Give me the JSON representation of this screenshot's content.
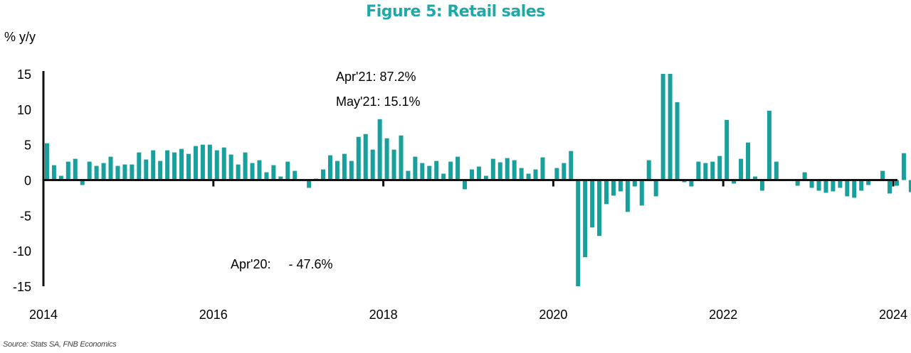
{
  "chart_data": {
    "type": "bar",
    "title": "Figure 5: Retail sales",
    "ylabel": "% y/y",
    "xlabel": "",
    "source": "Source: Stats SA, FNB Economics",
    "ylim": [
      -15,
      15
    ],
    "yticks": [
      15,
      10,
      5,
      0,
      -5,
      -10,
      -15
    ],
    "xticks": [
      "2014",
      "2016",
      "2018",
      "2020",
      "2022",
      "2024"
    ],
    "xrange": {
      "start": "2014-01",
      "end": "2024-03"
    },
    "grid": false,
    "legend": "none",
    "bar_color": "#17a09c",
    "annotations": [
      {
        "text": "Apr'21: 87.2%",
        "anchor": "top-center"
      },
      {
        "text": "May'21: 15.1%",
        "anchor": "top-center"
      },
      {
        "text": "Apr'20:     - 47.6%",
        "anchor": "bottom-left"
      }
    ],
    "series": [
      {
        "name": "Retail sales % y/y",
        "start": "2014-01",
        "frequency": "monthly",
        "values": [
          5.2,
          2.1,
          0.6,
          2.6,
          3.0,
          -0.7,
          2.6,
          2.0,
          2.4,
          3.3,
          2.0,
          2.2,
          2.2,
          3.9,
          2.9,
          4.2,
          2.7,
          4.2,
          3.9,
          4.4,
          3.7,
          4.8,
          5.0,
          5.0,
          4.2,
          4.6,
          3.6,
          2.2,
          3.9,
          2.4,
          2.8,
          1.1,
          2.1,
          0.5,
          2.6,
          1.3,
          0.1,
          -1.1,
          0.2,
          1.5,
          3.5,
          2.7,
          3.7,
          2.7,
          6.1,
          6.5,
          4.3,
          8.6,
          5.9,
          4.3,
          6.3,
          1.3,
          3.3,
          2.4,
          2.0,
          2.7,
          0.9,
          2.6,
          3.3,
          -1.3,
          1.5,
          1.9,
          0.6,
          3.0,
          2.5,
          3.1,
          2.8,
          1.7,
          0.9,
          1.5,
          3.2,
          0.1,
          1.7,
          2.4,
          4.1,
          -47.6,
          -10.9,
          -6.7,
          -7.9,
          -3.4,
          -2.2,
          -1.6,
          -4.5,
          -0.9,
          -3.6,
          2.8,
          -2.3,
          87.2,
          15.1,
          11.0,
          -0.3,
          -0.9,
          2.6,
          2.4,
          2.6,
          3.4,
          8.5,
          -0.5,
          3.0,
          5.3,
          0.5,
          -1.5,
          9.8,
          2.6,
          -0.1,
          -0.1,
          -0.8,
          1.1,
          -1.1,
          -1.5,
          -1.8,
          -1.6,
          -1.1,
          -2.3,
          -2.5,
          -1.5,
          -0.7,
          -0.1,
          1.3,
          -1.9,
          -0.8,
          3.8,
          -1.7
        ]
      }
    ]
  }
}
